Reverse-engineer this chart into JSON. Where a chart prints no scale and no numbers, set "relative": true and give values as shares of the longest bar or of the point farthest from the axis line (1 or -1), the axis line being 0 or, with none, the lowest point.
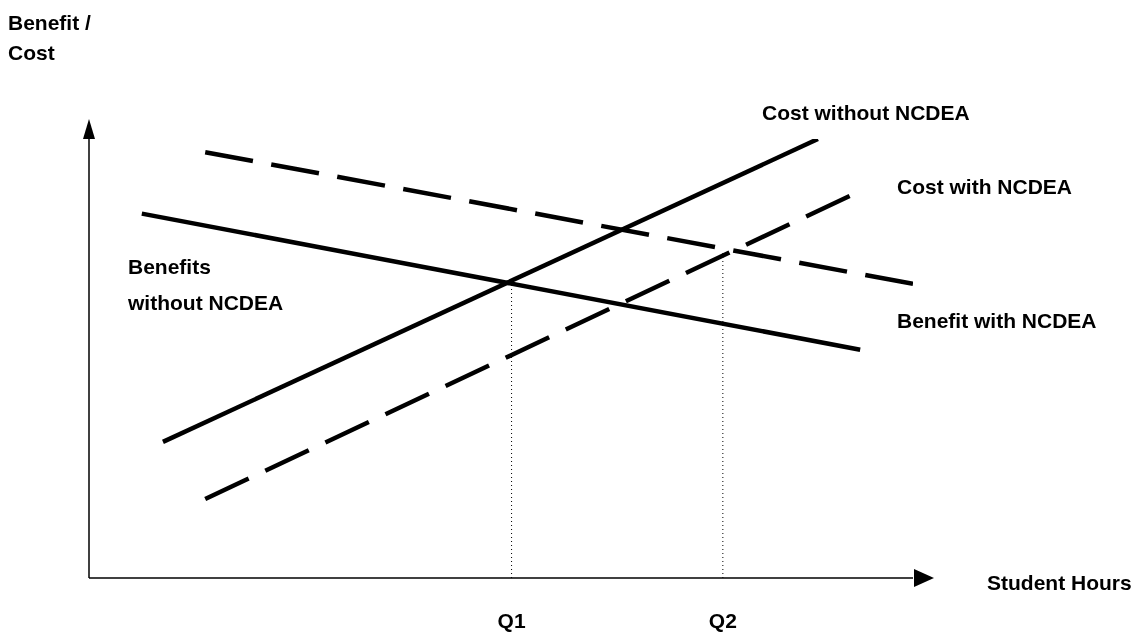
{
  "chart_data": {
    "type": "line",
    "relative": true,
    "ylabel": "Benefit / Cost",
    "xlabel": "Student Hours",
    "categories": [
      null,
      null,
      null,
      null,
      null,
      null,
      null,
      null,
      null,
      null,
      null,
      null,
      null,
      null,
      null,
      null,
      null,
      null,
      null,
      null,
      null,
      null,
      null,
      null,
      null,
      null,
      null,
      null,
      null,
      null,
      null,
      null,
      null,
      null,
      null,
      null,
      null,
      null,
      null,
      null,
      "Q1",
      null,
      null,
      null,
      null,
      null,
      null,
      null,
      null,
      null,
      null,
      null,
      null,
      null,
      null,
      null,
      null,
      null,
      null,
      null,
      "Q2",
      null,
      null,
      null,
      null,
      null,
      null,
      null,
      null,
      null,
      null,
      null,
      null,
      null,
      null,
      null,
      null,
      null,
      null
    ],
    "series": [
      {
        "name": "Cost without NCDEA",
        "color": "#000000",
        "line_style": "solid",
        "values": [
          null,
          null,
          null,
          null,
          null,
          null,
          null,
          0.31,
          null,
          null,
          null,
          null,
          null,
          null,
          null,
          null,
          null,
          null,
          null,
          null,
          null,
          null,
          null,
          null,
          null,
          null,
          null,
          null,
          null,
          null,
          null,
          null,
          null,
          null,
          null,
          null,
          null,
          null,
          null,
          null,
          null,
          null,
          null,
          null,
          null,
          null,
          null,
          null,
          null,
          null,
          null,
          null,
          null,
          null,
          null,
          null,
          null,
          null,
          null,
          null,
          null,
          null,
          null,
          null,
          null,
          null,
          null,
          null,
          null,
          1,
          null,
          null,
          null,
          null,
          null,
          null,
          null,
          null,
          null
        ]
      },
      {
        "name": "Benefits without NCDEA",
        "color": "#000000",
        "line_style": "solid",
        "values": [
          null,
          null,
          null,
          null,
          null,
          0.83,
          null,
          null,
          null,
          null,
          null,
          null,
          null,
          null,
          null,
          null,
          null,
          null,
          null,
          null,
          null,
          null,
          null,
          null,
          null,
          null,
          null,
          null,
          null,
          null,
          null,
          null,
          null,
          null,
          null,
          null,
          null,
          null,
          null,
          null,
          null,
          null,
          null,
          null,
          null,
          null,
          null,
          null,
          null,
          null,
          null,
          null,
          null,
          null,
          null,
          null,
          null,
          null,
          null,
          null,
          null,
          null,
          null,
          null,
          null,
          null,
          null,
          null,
          null,
          null,
          null,
          null,
          null,
          0.52,
          null,
          null,
          null,
          null,
          null
        ]
      },
      {
        "name": "Cost with NCDEA",
        "color": "#000000",
        "line_style": "dashed",
        "values": [
          null,
          null,
          null,
          null,
          null,
          null,
          null,
          null,
          null,
          null,
          null,
          0.18,
          null,
          null,
          null,
          null,
          null,
          null,
          null,
          null,
          null,
          null,
          null,
          null,
          null,
          null,
          null,
          null,
          null,
          null,
          null,
          null,
          null,
          null,
          null,
          null,
          null,
          null,
          null,
          null,
          null,
          null,
          null,
          null,
          null,
          null,
          null,
          null,
          null,
          null,
          null,
          null,
          null,
          null,
          null,
          null,
          null,
          null,
          null,
          null,
          null,
          null,
          null,
          null,
          null,
          null,
          null,
          null,
          null,
          null,
          null,
          null,
          0.87,
          null,
          null,
          null,
          null,
          null,
          null
        ]
      },
      {
        "name": "Benefit with NCDEA",
        "color": "#000000",
        "line_style": "dashed",
        "values": [
          null,
          null,
          null,
          null,
          null,
          null,
          null,
          null,
          null,
          null,
          null,
          0.97,
          null,
          null,
          null,
          null,
          null,
          null,
          null,
          null,
          null,
          null,
          null,
          null,
          null,
          null,
          null,
          null,
          null,
          null,
          null,
          null,
          null,
          null,
          null,
          null,
          null,
          null,
          null,
          null,
          null,
          null,
          null,
          null,
          null,
          null,
          null,
          null,
          null,
          null,
          null,
          null,
          null,
          null,
          null,
          null,
          null,
          null,
          null,
          null,
          null,
          null,
          null,
          null,
          null,
          null,
          null,
          null,
          null,
          null,
          null,
          null,
          null,
          null,
          null,
          null,
          null,
          null,
          0.67
        ]
      }
    ],
    "ref_lines": [
      {
        "axis": "x",
        "value": "Q1",
        "line_style": "dotted",
        "color": "#000000"
      },
      {
        "axis": "x",
        "value": "Q2",
        "line_style": "dotted",
        "color": "#000000"
      }
    ]
  }
}
